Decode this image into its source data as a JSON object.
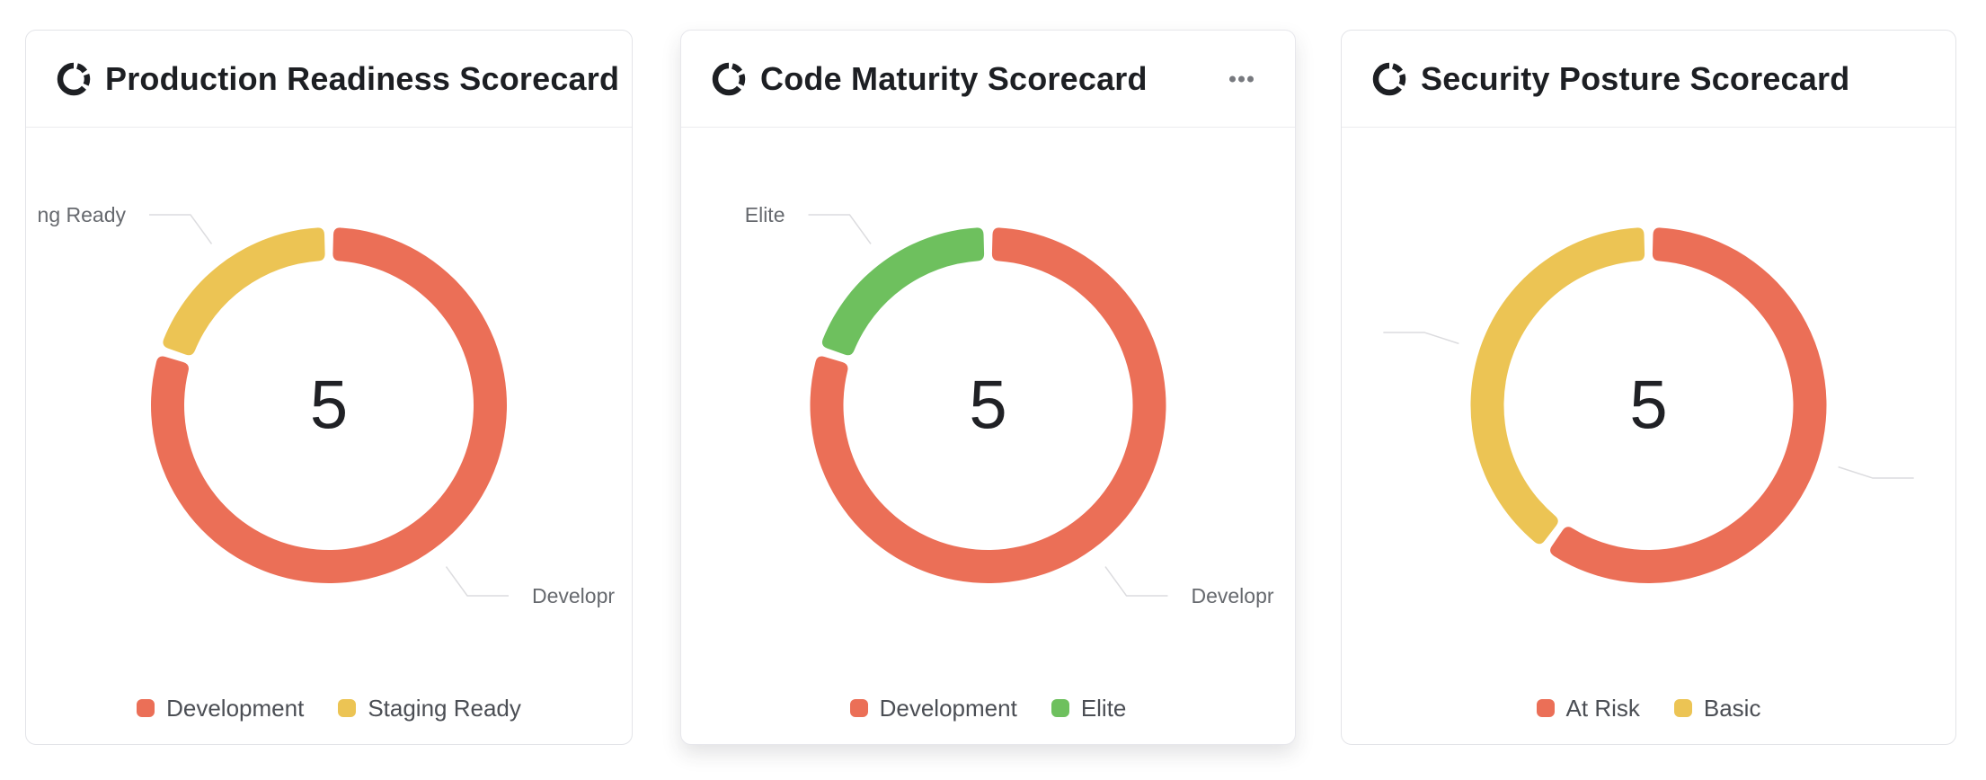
{
  "page": {
    "background": "#ffffff"
  },
  "icons": {
    "card_title_icon": "donut-ring-icon",
    "card_menu_icon": "ellipsis-icon"
  },
  "colors": {
    "red": "#eb6f57",
    "yellow": "#ecc454",
    "green": "#6ec05e",
    "title_text": "#1d1f23",
    "legend_text": "#4b4e54",
    "callout_text": "#66696e",
    "callout_line": "#dcdcdf",
    "card_border": "#e3e4e8",
    "header_divider": "#ebebee",
    "center_number": "#202125",
    "menu_dots": "#77797e"
  },
  "cards": [
    {
      "menu_visible": false,
      "elevated": false
    },
    {
      "menu_visible": true,
      "elevated": true
    },
    {
      "menu_visible": false,
      "elevated": false
    }
  ],
  "chart_data": [
    {
      "type": "pie",
      "donut": true,
      "title": "Production Readiness Scorecard",
      "center_label": "5",
      "categories": [
        "Development",
        "Staging Ready"
      ],
      "values": [
        4,
        1
      ],
      "colors": [
        "#eb6f57",
        "#ecc454"
      ],
      "callout_texts_visible": [
        "Developr",
        "ng Ready"
      ],
      "legend_position": "bottom"
    },
    {
      "type": "pie",
      "donut": true,
      "title": "Code Maturity Scorecard",
      "center_label": "5",
      "categories": [
        "Development",
        "Elite"
      ],
      "values": [
        4,
        1
      ],
      "colors": [
        "#eb6f57",
        "#6ec05e"
      ],
      "callout_texts_visible": [
        "Developr",
        "Elite"
      ],
      "legend_position": "bottom"
    },
    {
      "type": "pie",
      "donut": true,
      "title": "Security Posture Scorecard",
      "center_label": "5",
      "categories": [
        "At Risk",
        "Basic"
      ],
      "values": [
        3,
        2
      ],
      "colors": [
        "#eb6f57",
        "#ecc454"
      ],
      "callout_texts_visible": [
        "",
        ""
      ],
      "legend_position": "bottom"
    }
  ]
}
